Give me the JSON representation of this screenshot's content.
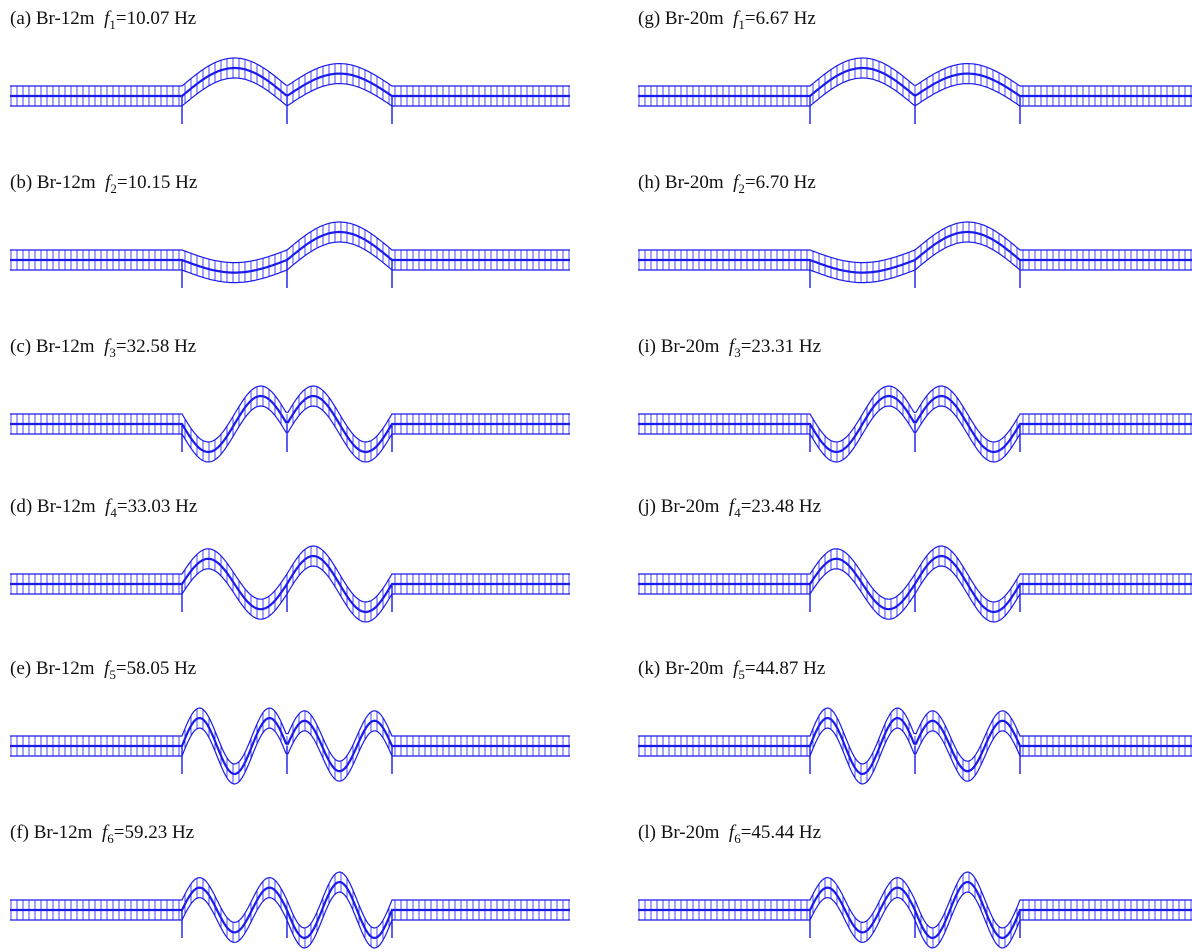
{
  "figure": {
    "line_color": "#1a1aee",
    "panels": [
      {
        "tag": "(a)",
        "bridge": "Br-12m",
        "mode_symbol": "f",
        "mode_index": "1",
        "frequency": "=10.07 Hz",
        "span_count": 2,
        "shape": "sym1"
      },
      {
        "tag": "(b)",
        "bridge": "Br-12m",
        "mode_symbol": "f",
        "mode_index": "2",
        "frequency": "=10.15 Hz",
        "span_count": 2,
        "shape": "anti1"
      },
      {
        "tag": "(c)",
        "bridge": "Br-12m",
        "mode_symbol": "f",
        "mode_index": "3",
        "frequency": "=32.58 Hz",
        "span_count": 2,
        "shape": "sym2"
      },
      {
        "tag": "(d)",
        "bridge": "Br-12m",
        "mode_symbol": "f",
        "mode_index": "4",
        "frequency": "=33.03 Hz",
        "span_count": 2,
        "shape": "anti2"
      },
      {
        "tag": "(e)",
        "bridge": "Br-12m",
        "mode_symbol": "f",
        "mode_index": "5",
        "frequency": "=58.05 Hz",
        "span_count": 2,
        "shape": "sym3"
      },
      {
        "tag": "(f)",
        "bridge": "Br-12m",
        "mode_symbol": "f",
        "mode_index": "6",
        "frequency": "=59.23 Hz",
        "span_count": 2,
        "shape": "anti3"
      },
      {
        "tag": "(g)",
        "bridge": "Br-20m",
        "mode_symbol": "f",
        "mode_index": "1",
        "frequency": "=6.67 Hz",
        "span_count": 2,
        "shape": "sym1"
      },
      {
        "tag": "(h)",
        "bridge": "Br-20m",
        "mode_symbol": "f",
        "mode_index": "2",
        "frequency": "=6.70 Hz",
        "span_count": 2,
        "shape": "anti1"
      },
      {
        "tag": "(i)",
        "bridge": "Br-20m",
        "mode_symbol": "f",
        "mode_index": "3",
        "frequency": "=23.31 Hz",
        "span_count": 2,
        "shape": "sym2"
      },
      {
        "tag": "(j)",
        "bridge": "Br-20m",
        "mode_symbol": "f",
        "mode_index": "4",
        "frequency": "=23.48 Hz",
        "span_count": 2,
        "shape": "anti2"
      },
      {
        "tag": "(k)",
        "bridge": "Br-20m",
        "mode_symbol": "f",
        "mode_index": "5",
        "frequency": "=44.87 Hz",
        "span_count": 2,
        "shape": "sym3"
      },
      {
        "tag": "(l)",
        "bridge": "Br-20m",
        "mode_symbol": "f",
        "mode_index": "6",
        "frequency": "=45.44 Hz",
        "span_count": 2,
        "shape": "anti3"
      }
    ]
  }
}
